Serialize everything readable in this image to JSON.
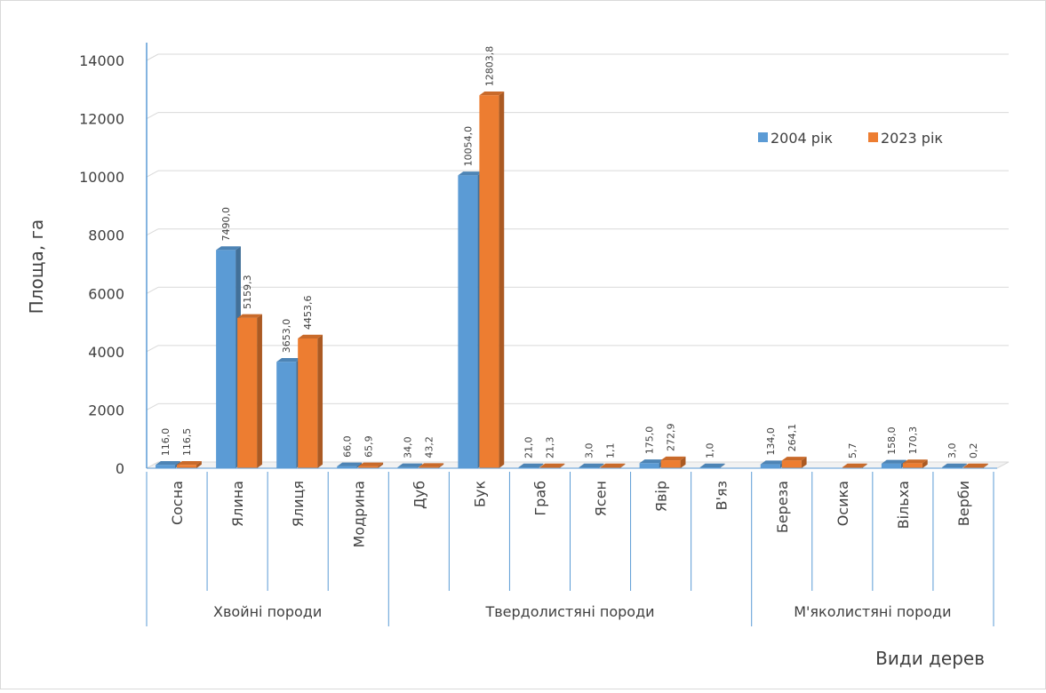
{
  "chart_data": {
    "type": "bar",
    "title": "",
    "ylabel": "Площа, га",
    "xlabel": "Види дерев",
    "ylim": [
      0,
      14000
    ],
    "yticks": [
      0,
      2000,
      4000,
      6000,
      8000,
      10000,
      12000,
      14000
    ],
    "grid": true,
    "legend_position": "top-right",
    "categories": [
      "Сосна",
      "Ялина",
      "Ялиця",
      "Модрина",
      "Дуб",
      "Бук",
      "Граб",
      "Ясен",
      "Явір",
      "В'яз",
      "Береза",
      "Осика",
      "Вільха",
      "Верби"
    ],
    "groups": [
      {
        "label": "Хвойні породи",
        "start": 0,
        "count": 4
      },
      {
        "label": "Твердолистяні породи",
        "start": 4,
        "count": 6
      },
      {
        "label": "М'яколистяні породи",
        "start": 10,
        "count": 4
      }
    ],
    "series": [
      {
        "name": "2004 рік",
        "color": "#5B9BD5",
        "values": [
          116.0,
          7490.0,
          3653.0,
          66.0,
          34.0,
          10054.0,
          21.0,
          3.0,
          175.0,
          1.0,
          134.0,
          null,
          158.0,
          3.0
        ],
        "labels": [
          "116,0",
          "7490,0",
          "3653,0",
          "66,0",
          "34,0",
          "10054,0",
          "21,0",
          "3,0",
          "175,0",
          "1,0",
          "134,0",
          "",
          "158,0",
          "3,0"
        ]
      },
      {
        "name": "2023 рік",
        "color": "#ED7D31",
        "values": [
          116.5,
          5159.3,
          4453.6,
          65.9,
          43.2,
          12803.8,
          21.3,
          1.1,
          272.9,
          null,
          264.1,
          5.7,
          170.3,
          0.2
        ],
        "labels": [
          "116,5",
          "5159,3",
          "4453,6",
          "65,9",
          "43,2",
          "12803,8",
          "21,3",
          "1,1",
          "272,9",
          "",
          "264,1",
          "5,7",
          "170,3",
          "0,2"
        ]
      }
    ]
  }
}
